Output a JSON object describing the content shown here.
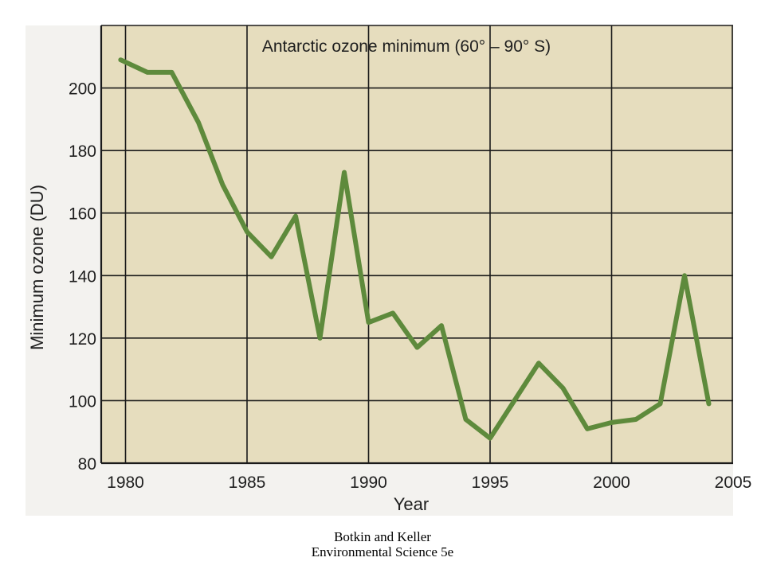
{
  "chart_data": {
    "type": "line",
    "title": "Antarctic ozone minimum (60° – 90° S)",
    "xlabel": "Year",
    "ylabel": "Minimum ozone (DU)",
    "xlim": [
      1979,
      2005
    ],
    "ylim": [
      80,
      220
    ],
    "x_ticks": [
      1980,
      1985,
      1990,
      1995,
      2000,
      2005
    ],
    "y_ticks": [
      80,
      100,
      120,
      140,
      160,
      180,
      200
    ],
    "grid": true,
    "series": [
      {
        "x": [
          1979.8,
          1980.9,
          1981.9,
          1983,
          1984,
          1985,
          1986,
          1987,
          1988,
          1989,
          1990,
          1991,
          1992,
          1993,
          1994,
          1995,
          1996,
          1997,
          1998,
          1999,
          2000,
          2001,
          2002,
          2003,
          2004
        ],
        "y": [
          209,
          205,
          205,
          189,
          169,
          154,
          146,
          159,
          120,
          173,
          125,
          128,
          117,
          124,
          94,
          88,
          100,
          112,
          104,
          91,
          93,
          94,
          99,
          140,
          99
        ],
        "color": "#5e8a3c"
      }
    ],
    "colors": {
      "plot_background": "#e6ddbe",
      "line": "#5e8a3c",
      "grid": "#1a1a1a"
    }
  },
  "caption": {
    "line1": "Botkin and Keller",
    "line2": "Environmental Science 5e"
  }
}
